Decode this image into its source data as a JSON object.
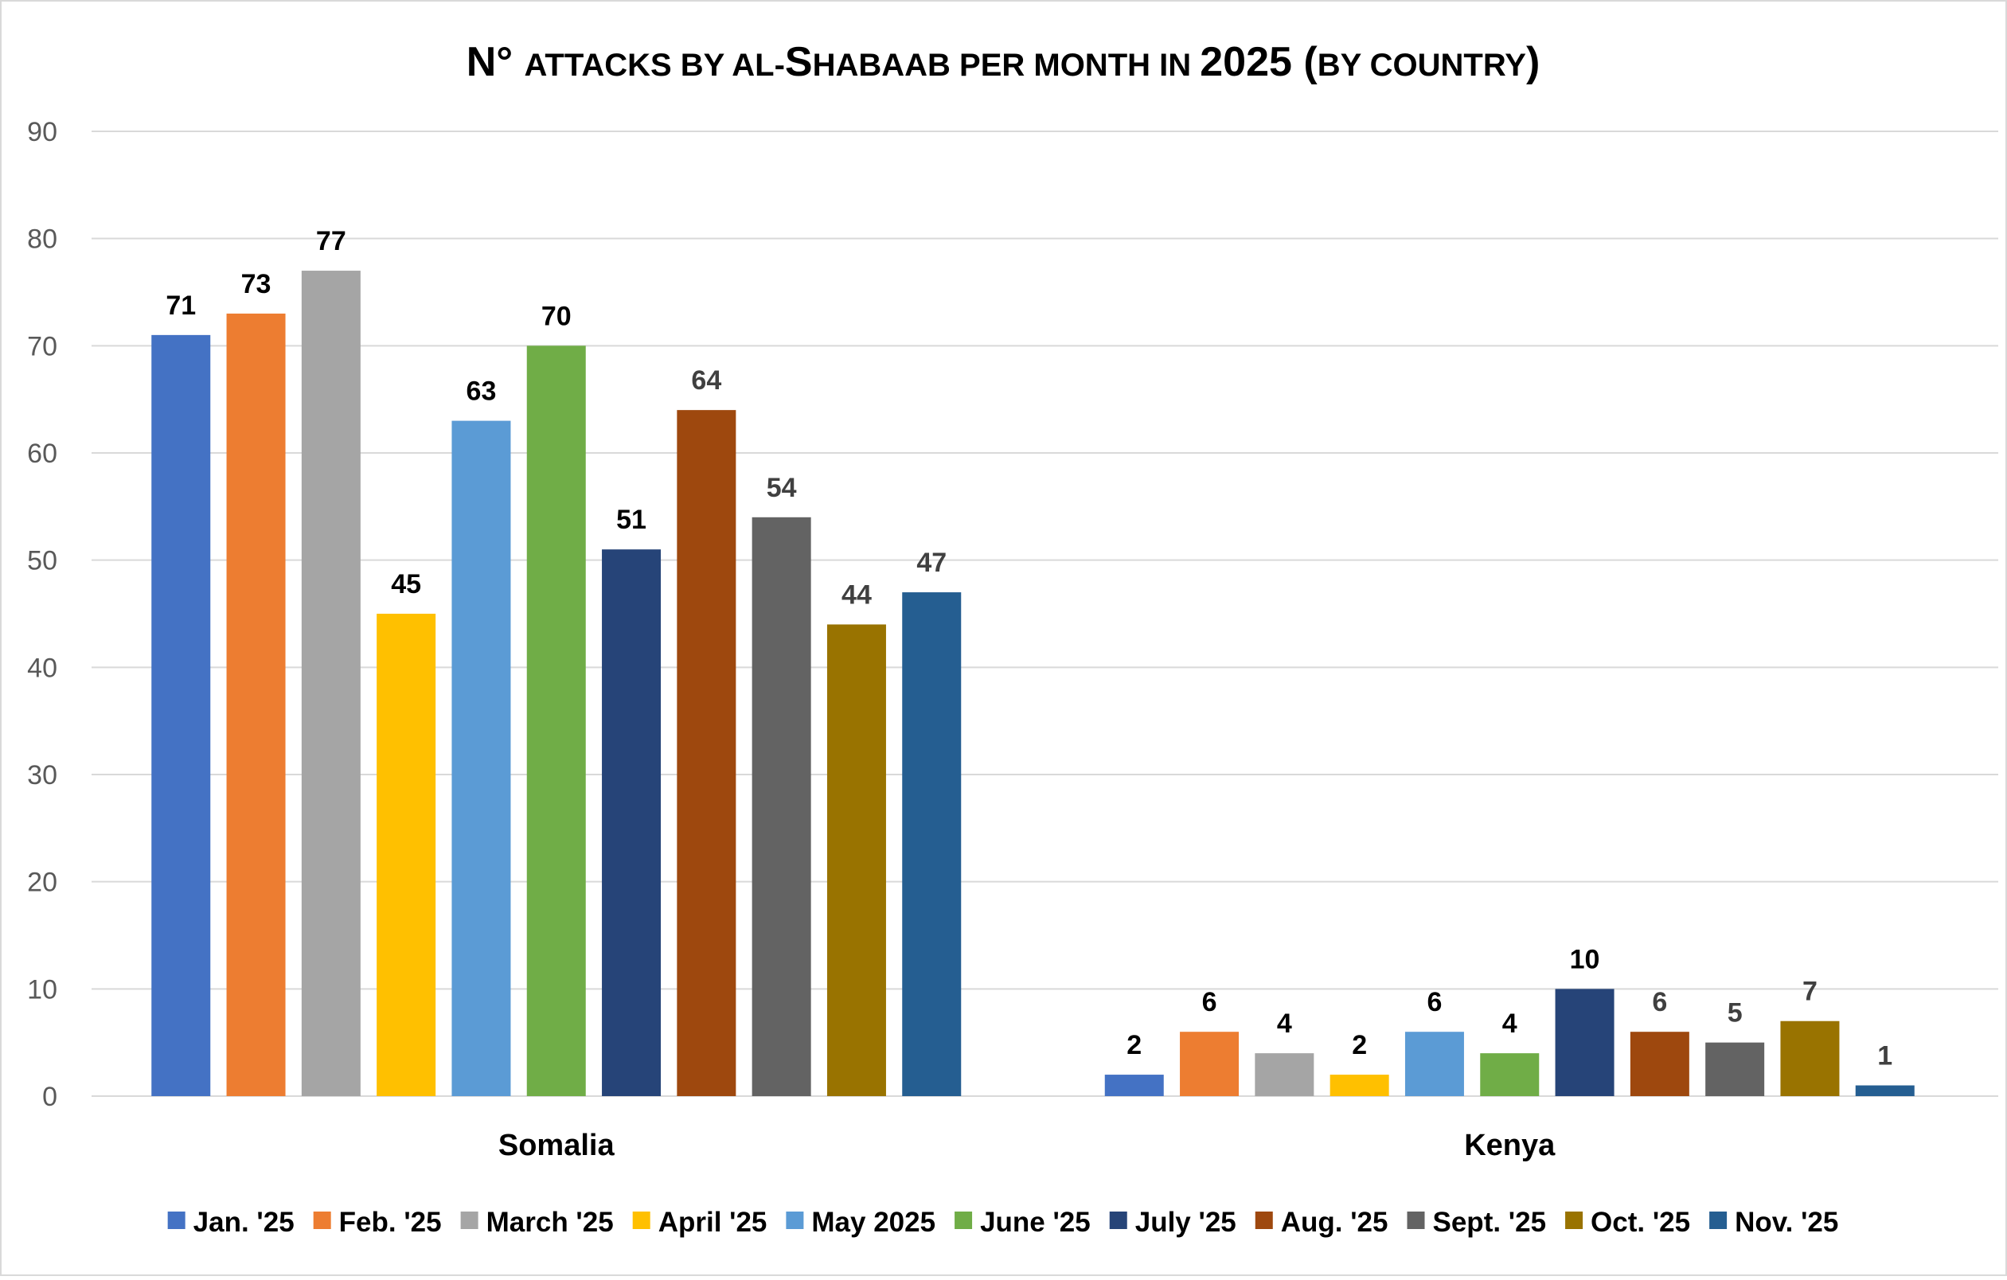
{
  "chart_data": {
    "type": "bar",
    "title_parts": [
      {
        "text": "N° ",
        "small": false
      },
      {
        "text": "attacks by al-",
        "small": true
      },
      {
        "text": "S",
        "small": false
      },
      {
        "text": "habaab per month in ",
        "small": true
      },
      {
        "text": "2025 (",
        "small": false
      },
      {
        "text": "by country",
        "small": true
      },
      {
        "text": ")",
        "small": false
      }
    ],
    "categories": [
      "Somalia",
      "Kenya"
    ],
    "ylim": [
      0,
      90
    ],
    "yticks": [
      0,
      10,
      20,
      30,
      40,
      50,
      60,
      70,
      80,
      90
    ],
    "grid": true,
    "legend_position": "bottom",
    "series": [
      {
        "name": "Jan. '25",
        "color": "#4472C4",
        "values": [
          71,
          2
        ]
      },
      {
        "name": "Feb. '25",
        "color": "#ED7D31",
        "values": [
          73,
          6
        ]
      },
      {
        "name": "March '25",
        "color": "#A5A5A5",
        "values": [
          77,
          4
        ]
      },
      {
        "name": "April '25",
        "color": "#FFC000",
        "values": [
          45,
          2
        ]
      },
      {
        "name": "May 2025",
        "color": "#5B9BD5",
        "values": [
          63,
          6
        ]
      },
      {
        "name": "June '25",
        "color": "#70AD47",
        "values": [
          70,
          4
        ]
      },
      {
        "name": "July '25",
        "color": "#264478",
        "values": [
          51,
          10
        ]
      },
      {
        "name": "Aug. '25",
        "color": "#9E480E",
        "values": [
          64,
          6
        ]
      },
      {
        "name": "Sept. '25",
        "color": "#636363",
        "values": [
          54,
          5
        ]
      },
      {
        "name": "Oct. '25",
        "color": "#997300",
        "values": [
          44,
          7
        ]
      },
      {
        "name": "Nov. '25",
        "color": "#255E91",
        "values": [
          47,
          1
        ]
      }
    ],
    "label_colors": {
      "dark": "#000000",
      "grey": "#404040"
    },
    "grey_label_series": [
      "Aug. '25",
      "Sept. '25",
      "Oct. '25",
      "Nov. '25"
    ]
  }
}
